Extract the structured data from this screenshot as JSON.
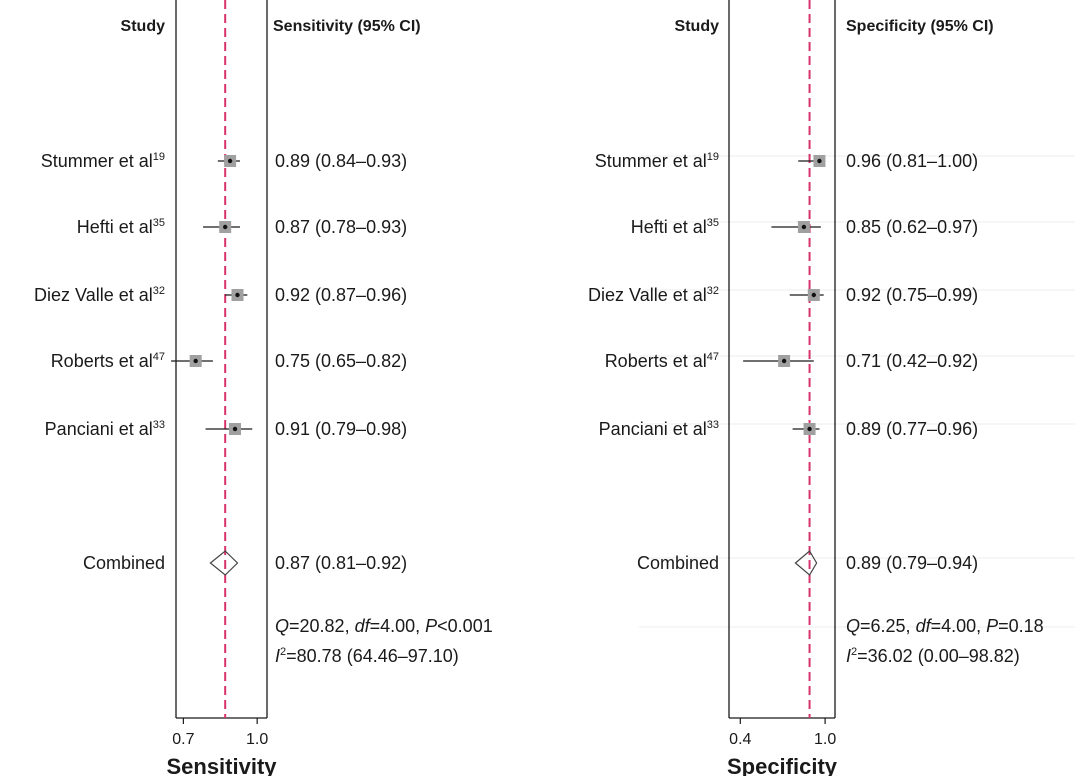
{
  "chart_data": [
    {
      "type": "forest",
      "study_header": "Study",
      "estimate_header": "Sensitivity (95% CI)",
      "xlabel": "Sensitivity",
      "xlim": [
        0.67,
        1.04
      ],
      "ticks": [
        0.7,
        1.0
      ],
      "tick_labels": [
        "0.7",
        "1.0"
      ],
      "reference_line": 0.87,
      "studies": [
        {
          "name": "Stummer et al",
          "ref": "19",
          "value": 0.89,
          "lo": 0.84,
          "hi": 0.93,
          "label": "0.89 (0.84–0.93)"
        },
        {
          "name": "Hefti et al",
          "ref": "35",
          "value": 0.87,
          "lo": 0.78,
          "hi": 0.93,
          "label": "0.87 (0.78–0.93)"
        },
        {
          "name": "Diez Valle et al",
          "ref": "32",
          "value": 0.92,
          "lo": 0.87,
          "hi": 0.96,
          "label": "0.92 (0.87–0.96)"
        },
        {
          "name": "Roberts et al",
          "ref": "47",
          "value": 0.75,
          "lo": 0.65,
          "hi": 0.82,
          "label": "0.75 (0.65–0.82)"
        },
        {
          "name": "Panciani et al",
          "ref": "33",
          "value": 0.91,
          "lo": 0.79,
          "hi": 0.98,
          "label": "0.91 (0.79–0.98)"
        }
      ],
      "combined": {
        "name": "Combined",
        "value": 0.87,
        "lo": 0.81,
        "hi": 0.92,
        "label": "0.87 (0.81–0.92)"
      },
      "heterogeneity": {
        "Q": "20.82",
        "df": "4.00",
        "P_op": "<",
        "P": "0.001",
        "I2": "80.78 (64.46–97.10)"
      }
    },
    {
      "type": "forest",
      "study_header": "Study",
      "estimate_header": "Specificity (95% CI)",
      "xlabel": "Specificity",
      "xlim": [
        0.32,
        1.07
      ],
      "ticks": [
        0.4,
        1.0
      ],
      "tick_labels": [
        "0.4",
        "1.0"
      ],
      "reference_line": 0.89,
      "studies": [
        {
          "name": "Stummer et al",
          "ref": "19",
          "value": 0.96,
          "lo": 0.81,
          "hi": 1.0,
          "label": "0.96 (0.81–1.00)"
        },
        {
          "name": "Hefti et al",
          "ref": "35",
          "value": 0.85,
          "lo": 0.62,
          "hi": 0.97,
          "label": "0.85 (0.62–0.97)"
        },
        {
          "name": "Diez Valle et al",
          "ref": "32",
          "value": 0.92,
          "lo": 0.75,
          "hi": 0.99,
          "label": "0.92 (0.75–0.99)"
        },
        {
          "name": "Roberts et al",
          "ref": "47",
          "value": 0.71,
          "lo": 0.42,
          "hi": 0.92,
          "label": "0.71 (0.42–0.92)"
        },
        {
          "name": "Panciani et al",
          "ref": "33",
          "value": 0.89,
          "lo": 0.77,
          "hi": 0.96,
          "label": "0.89 (0.77–0.96)"
        }
      ],
      "combined": {
        "name": "Combined",
        "value": 0.89,
        "lo": 0.79,
        "hi": 0.94,
        "label": "0.89 (0.79–0.94)"
      },
      "heterogeneity": {
        "Q": "6.25",
        "df": "4.00",
        "P_op": "=",
        "P": "0.18",
        "I2": "36.02 (0.00–98.82)"
      }
    }
  ],
  "colors": {
    "reference_line": "#d6336c",
    "marker_box": "#a0a0a0",
    "axis": "#1a1a1a",
    "faint_gridline": "#ececec"
  }
}
